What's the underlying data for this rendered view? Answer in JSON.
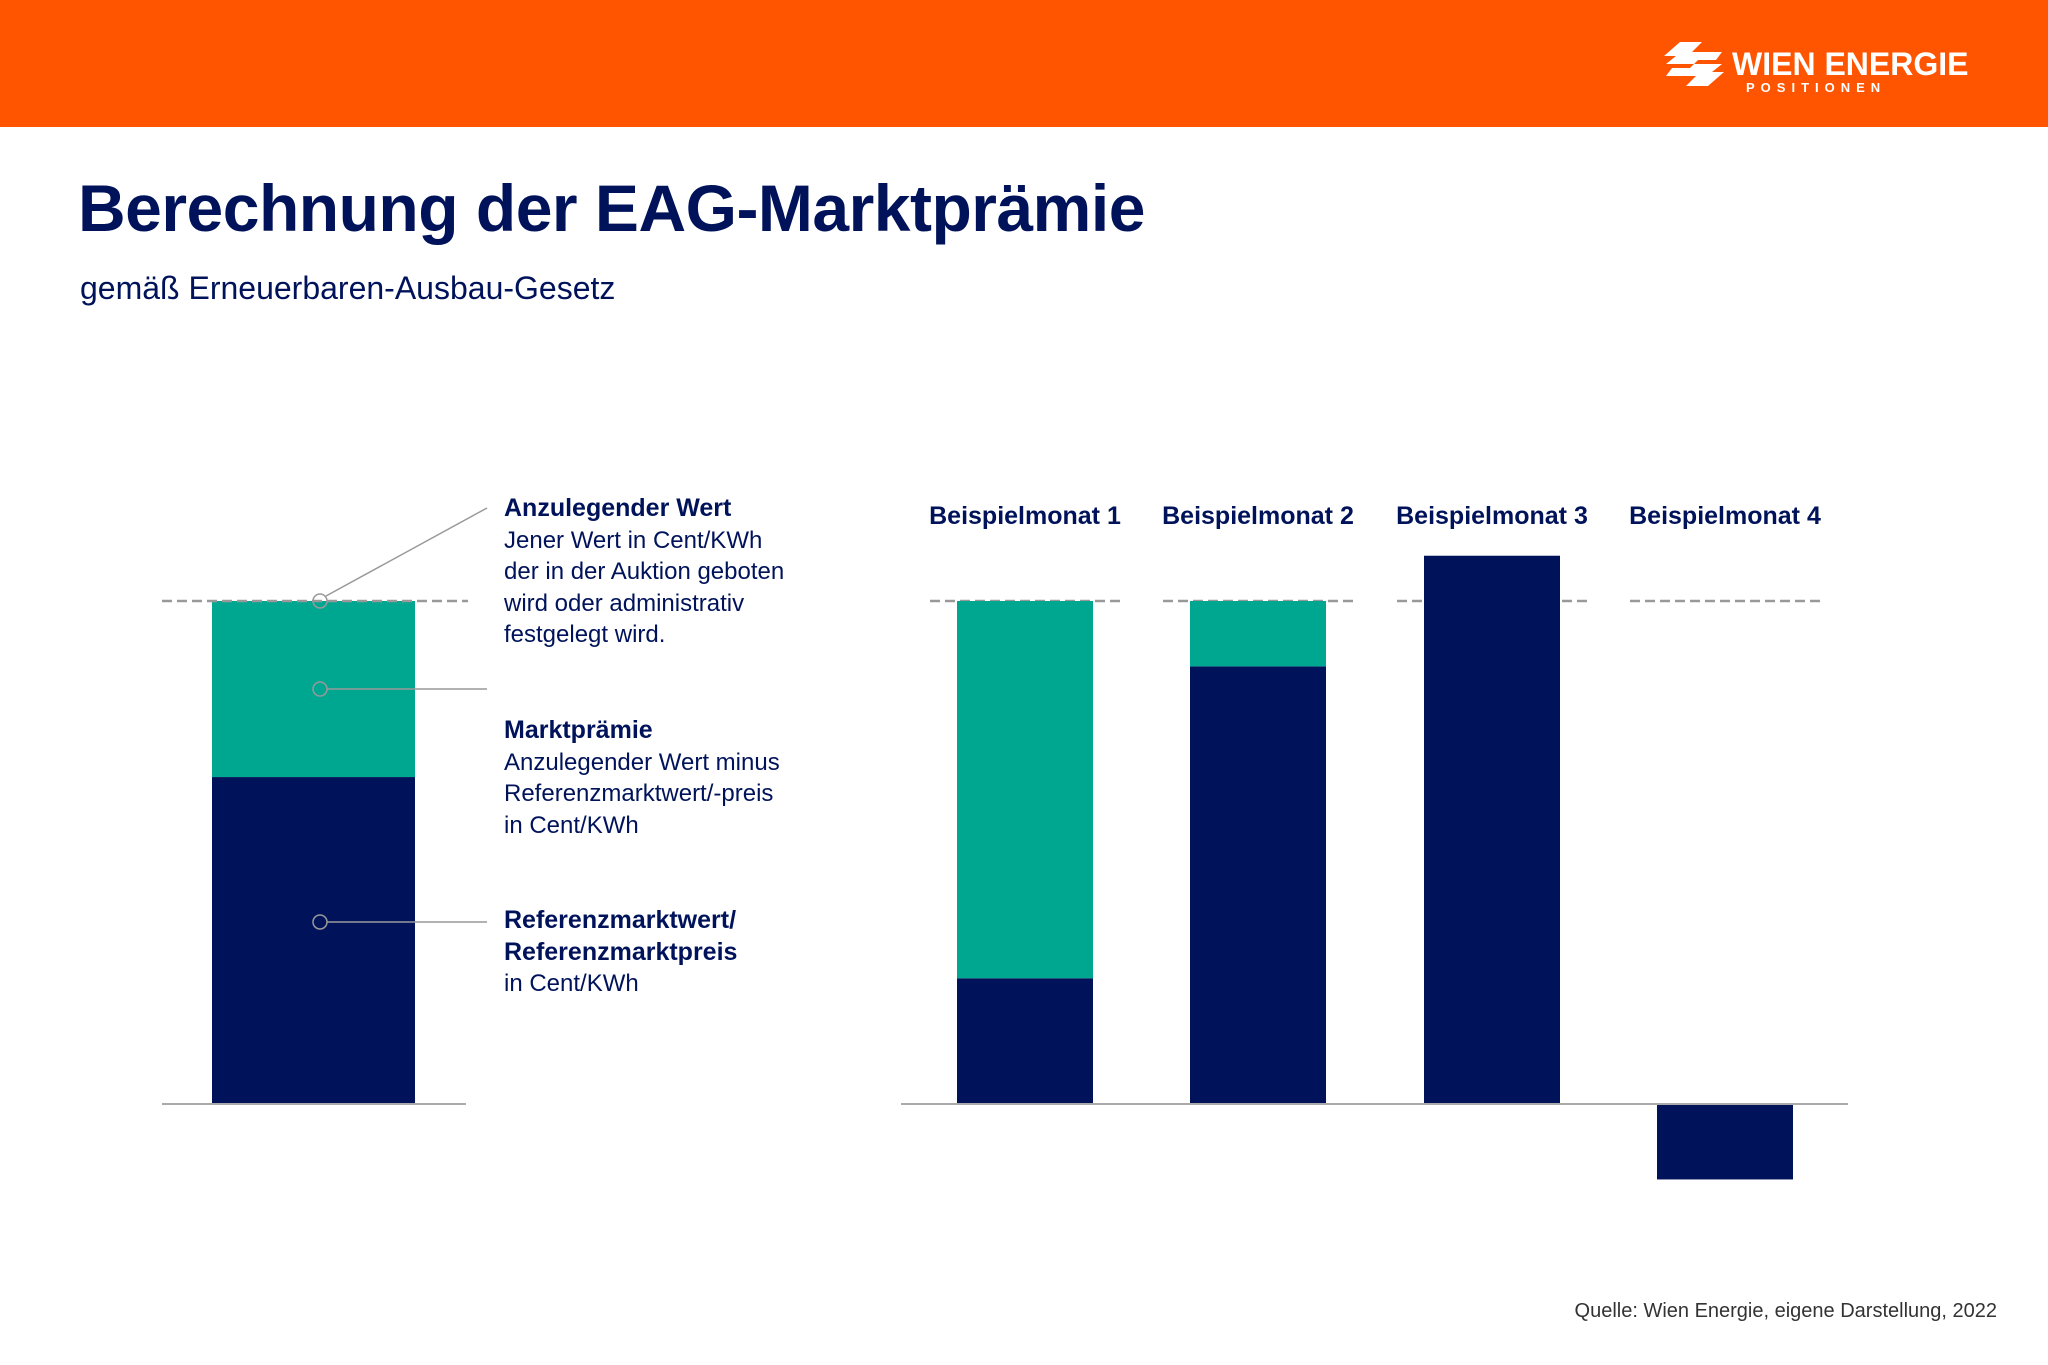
{
  "header": {
    "brand": "WIEN ENERGIE",
    "brand_sub": "POSITIONEN",
    "logo_icon": "wien-energie-logo-icon"
  },
  "title": "Berechnung der EAG-Marktprämie",
  "subtitle": "gemäß Erneuerbaren-Ausbau-Gesetz",
  "annotations": [
    {
      "heading": "Anzulegender Wert",
      "lines": [
        "Jener Wert in Cent/KWh",
        "der in der Auktion geboten",
        "wird oder administrativ",
        "festgelegt wird."
      ]
    },
    {
      "heading": "Marktprämie",
      "lines": [
        "Anzulegender Wert minus",
        "Referenzmarktwert/-preis",
        "in Cent/KWh"
      ]
    },
    {
      "heading_lines": [
        "Referenzmarktwert/",
        "Referenzmarktpreis"
      ],
      "lines": [
        "in Cent/KWh"
      ]
    }
  ],
  "colors": {
    "orange": "#ff5500",
    "navy": "#00135a",
    "teal": "#00a790",
    "grey": "#999999"
  },
  "chart_data": {
    "type": "bar",
    "stacked": true,
    "note": "schematic, no axis values shown",
    "anzulegender_wert": 10,
    "explainer": {
      "referenzmarktwert": 6.5,
      "marktpraemie": 3.5
    },
    "categories": [
      "Beispielmonat 1",
      "Beispielmonat 2",
      "Beispielmonat 3",
      "Beispielmonat 4"
    ],
    "series": [
      {
        "name": "Referenzmarktwert",
        "color": "#00135a",
        "values": [
          2.5,
          8.7,
          10.9,
          -1.5
        ]
      },
      {
        "name": "Marktprämie",
        "color": "#00a790",
        "values": [
          7.5,
          1.3,
          0,
          0
        ]
      }
    ]
  },
  "source": "Quelle: Wien Energie, eigene Darstellung, 2022"
}
